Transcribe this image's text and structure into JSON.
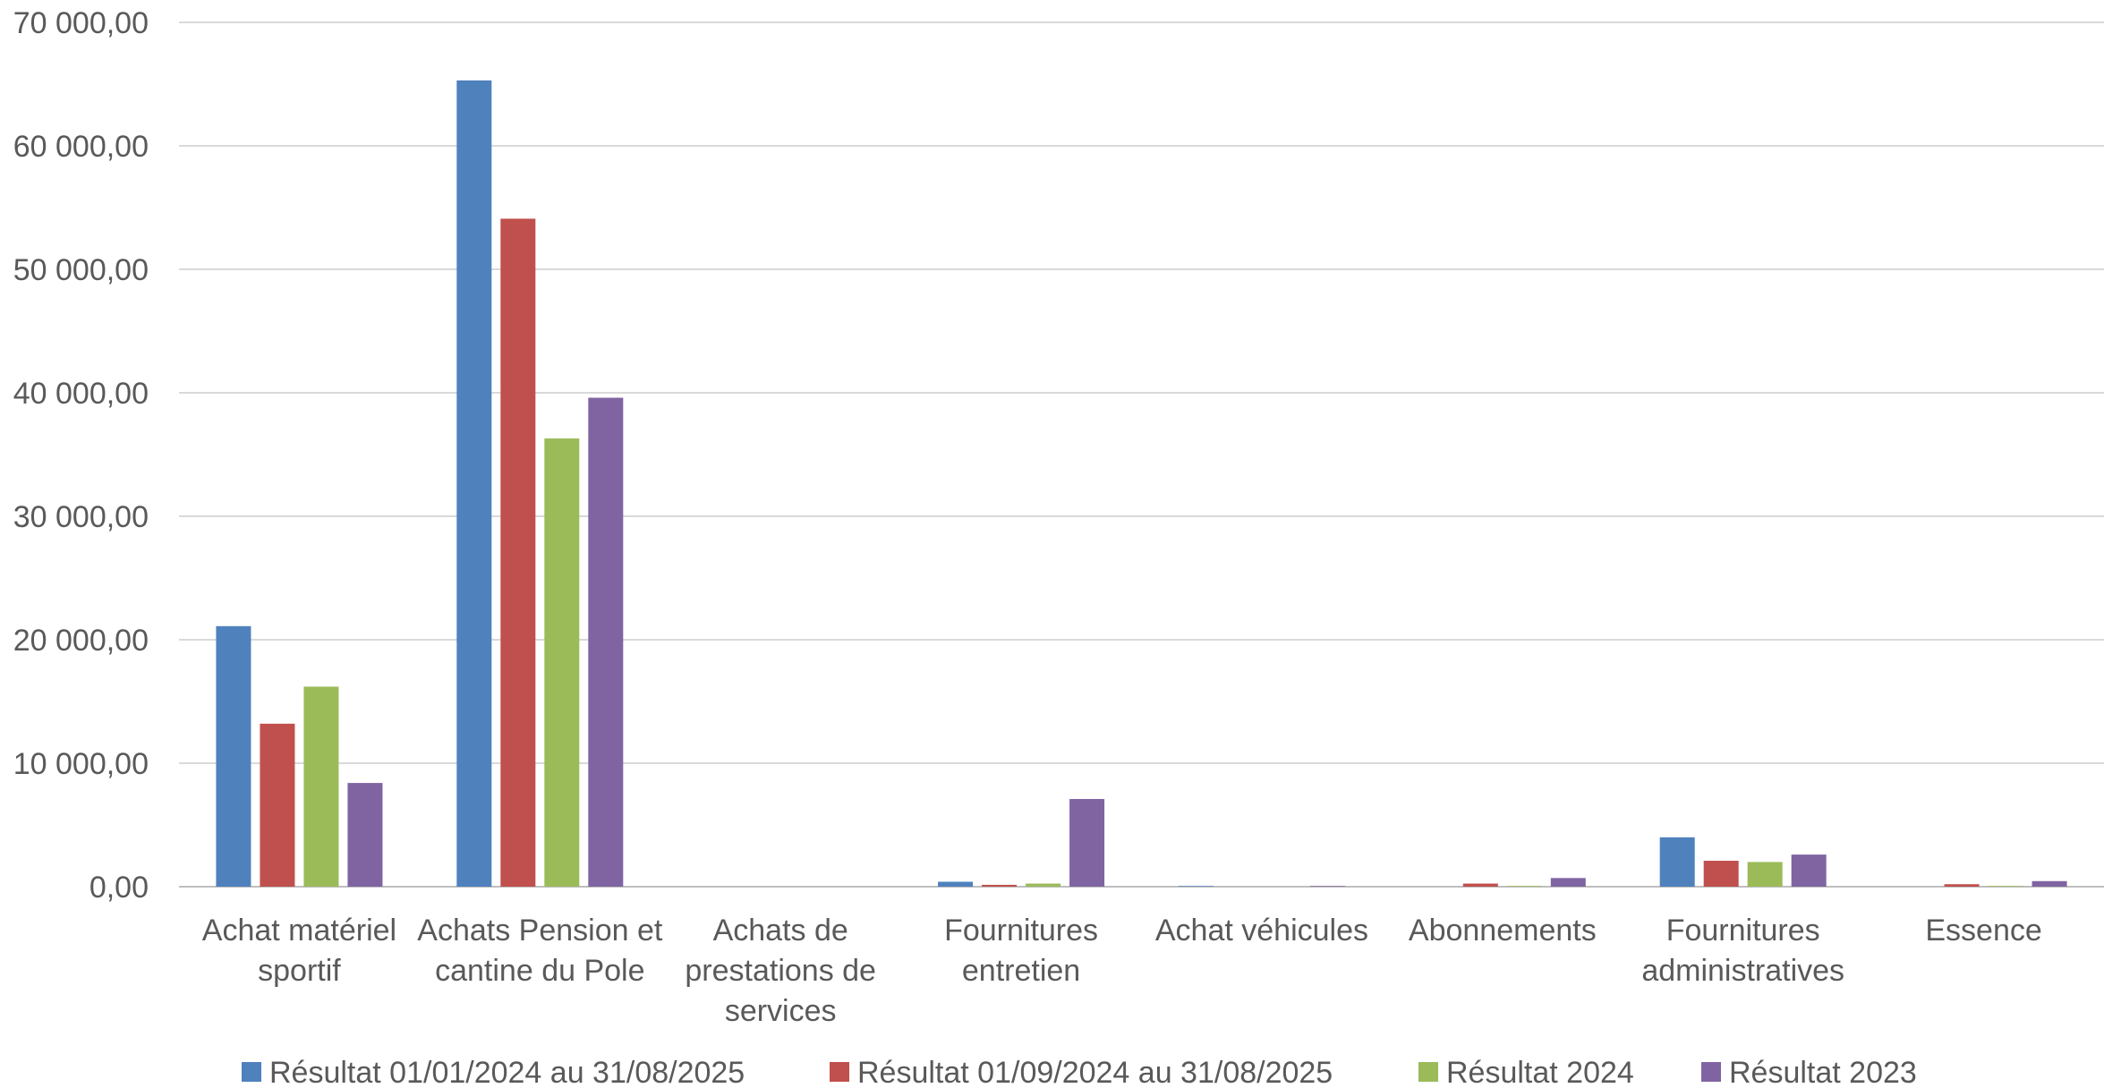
{
  "chart_data": {
    "type": "bar",
    "title": "",
    "xlabel": "",
    "ylabel": "",
    "ylim": [
      0,
      70000
    ],
    "yticks": [
      0,
      10000,
      20000,
      30000,
      40000,
      50000,
      60000,
      70000
    ],
    "ytick_labels": [
      "0,00",
      "10 000,00",
      "20 000,00",
      "30 000,00",
      "40 000,00",
      "50 000,00",
      "60 000,00",
      "70 000,00"
    ],
    "grid": true,
    "legend_position": "bottom",
    "categories": [
      [
        "Achat matériel",
        "sportif"
      ],
      [
        "Achats Pension et",
        "cantine du Pole"
      ],
      [
        "Achats de",
        "prestations de",
        "services"
      ],
      [
        "Fournitures",
        "entretien"
      ],
      [
        "Achat véhicules"
      ],
      [
        "Abonnements"
      ],
      [
        "Fournitures",
        "administratives"
      ],
      [
        "Essence"
      ]
    ],
    "series": [
      {
        "name": "Résultat 01/01/2024 au 31/08/2025",
        "color": "#4F81BD",
        "values": [
          21100,
          65300,
          0,
          400,
          50,
          0,
          4000,
          0
        ]
      },
      {
        "name": "Résultat 01/09/2024 au 31/08/2025",
        "color": "#C0504D",
        "values": [
          13200,
          54100,
          0,
          150,
          0,
          250,
          2100,
          200
        ]
      },
      {
        "name": "Résultat 2024",
        "color": "#9BBB59",
        "values": [
          16200,
          36300,
          0,
          250,
          0,
          50,
          2000,
          50
        ]
      },
      {
        "name": "Résultat 2023",
        "color": "#8064A2",
        "values": [
          8400,
          39600,
          0,
          7100,
          50,
          700,
          2600,
          450
        ]
      }
    ]
  }
}
